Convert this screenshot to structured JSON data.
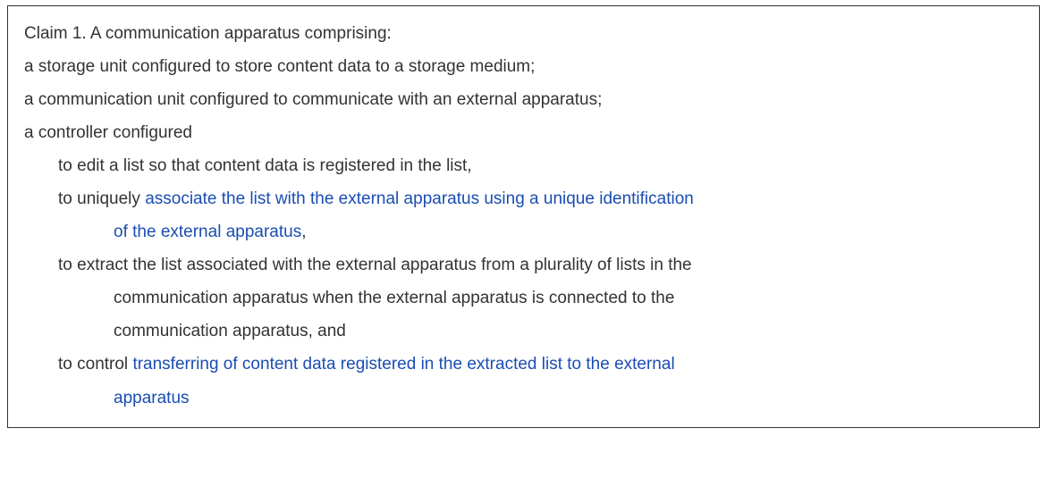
{
  "colors": {
    "text": "#333333",
    "highlight": "#1a4db3",
    "border": "#333333",
    "background": "#ffffff"
  },
  "typography": {
    "font_family": "Segoe UI, Tahoma, Arial, sans-serif",
    "font_size_pt": 14,
    "font_weight": 300,
    "line_height": 1.95
  },
  "claim": {
    "number": "Claim 1.",
    "preamble": "A communication apparatus comprising:",
    "elements": [
      "a storage unit configured to store content data to a storage medium;",
      "a communication unit configured to communicate with an external apparatus;",
      "a controller configured"
    ],
    "controller_clauses": [
      {
        "prefix": "to edit a list so that content data is registered in the list,",
        "highlight": ""
      },
      {
        "prefix": "to uniquely ",
        "highlight_line1": "associate the list with the external apparatus using a unique identification",
        "highlight_line2": "of the external apparatus",
        "suffix": ","
      },
      {
        "line1": "to extract the list associated with the external apparatus from a plurality of lists in the",
        "line2": "communication apparatus when the external apparatus is connected to the",
        "line3": "communication apparatus, and"
      },
      {
        "prefix": "to control ",
        "highlight_line1": "transferring of content data registered in the extracted list to the external",
        "highlight_line2": "apparatus"
      }
    ]
  }
}
